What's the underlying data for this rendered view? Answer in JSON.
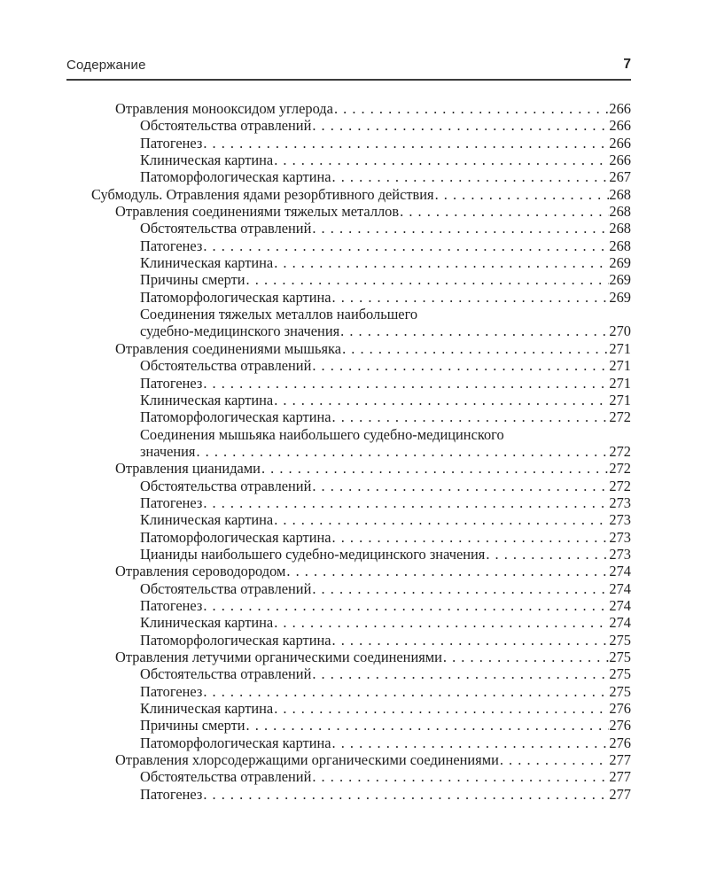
{
  "header": {
    "title": "Содержание",
    "page_number": "7"
  },
  "toc": {
    "entries": [
      {
        "indent": 1,
        "text": "Отравления монооксидом углерода",
        "page": "266"
      },
      {
        "indent": 2,
        "text": "Обстоятельства отравлений",
        "page": "266"
      },
      {
        "indent": 2,
        "text": "Патогенез",
        "page": "266"
      },
      {
        "indent": 2,
        "text": "Клиническая картина",
        "page": "266"
      },
      {
        "indent": 2,
        "text": "Патоморфологическая картина",
        "page": "267"
      },
      {
        "indent": 0,
        "text": "Субмодуль. Отравления ядами резорбтивного действия",
        "page": "268"
      },
      {
        "indent": 1,
        "text": "Отравления соединениями тяжелых металлов",
        "page": "268"
      },
      {
        "indent": 2,
        "text": "Обстоятельства отравлений",
        "page": "268"
      },
      {
        "indent": 2,
        "text": "Патогенез",
        "page": "268"
      },
      {
        "indent": 2,
        "text": "Клиническая картина",
        "page": "269"
      },
      {
        "indent": 2,
        "text": "Причины смерти",
        "page": "269"
      },
      {
        "indent": 2,
        "text": "Патоморфологическая картина",
        "page": "269"
      },
      {
        "indent": 2,
        "text": "Соединения тяжелых металлов наибольшего",
        "page": null
      },
      {
        "indent": 2,
        "text": "судебно-медицинского значения",
        "page": "270"
      },
      {
        "indent": 1,
        "text": "Отравления соединениями мышьяка",
        "page": "271"
      },
      {
        "indent": 2,
        "text": "Обстоятельства отравлений",
        "page": "271"
      },
      {
        "indent": 2,
        "text": "Патогенез",
        "page": "271"
      },
      {
        "indent": 2,
        "text": "Клиническая картина",
        "page": "271"
      },
      {
        "indent": 2,
        "text": "Патоморфологическая картина",
        "page": "272"
      },
      {
        "indent": 2,
        "text": "Соединения мышьяка наибольшего судебно-медицинского",
        "page": null
      },
      {
        "indent": 2,
        "text": "значения",
        "page": "272"
      },
      {
        "indent": 1,
        "text": "Отравления цианидами",
        "page": "272"
      },
      {
        "indent": 2,
        "text": "Обстоятельства отравлений",
        "page": "272"
      },
      {
        "indent": 2,
        "text": "Патогенез",
        "page": "273"
      },
      {
        "indent": 2,
        "text": "Клиническая картина",
        "page": "273"
      },
      {
        "indent": 2,
        "text": "Патоморфологическая картина",
        "page": "273"
      },
      {
        "indent": 2,
        "text": "Цианиды наибольшего судебно-медицинского значения",
        "page": "273"
      },
      {
        "indent": 1,
        "text": "Отравления сероводородом",
        "page": "274"
      },
      {
        "indent": 2,
        "text": "Обстоятельства отравлений",
        "page": "274"
      },
      {
        "indent": 2,
        "text": "Патогенез",
        "page": "274"
      },
      {
        "indent": 2,
        "text": "Клиническая картина",
        "page": "274"
      },
      {
        "indent": 2,
        "text": "Патоморфологическая картина",
        "page": "275"
      },
      {
        "indent": 1,
        "text": "Отравления летучими органическими соединениями",
        "page": "275"
      },
      {
        "indent": 2,
        "text": "Обстоятельства отравлений",
        "page": "275"
      },
      {
        "indent": 2,
        "text": "Патогенез",
        "page": "275"
      },
      {
        "indent": 2,
        "text": "Клиническая картина",
        "page": "276"
      },
      {
        "indent": 2,
        "text": "Причины смерти",
        "page": "276"
      },
      {
        "indent": 2,
        "text": "Патоморфологическая картина",
        "page": "276"
      },
      {
        "indent": 1,
        "text": "Отравления хлорсодержащими органическими соединениями",
        "page": "277"
      },
      {
        "indent": 2,
        "text": "Обстоятельства отравлений",
        "page": "277"
      },
      {
        "indent": 2,
        "text": "Патогенез",
        "page": "277"
      }
    ]
  },
  "colors": {
    "text": "#1e1e1e",
    "rule": "#3c3c3c",
    "background": "#ffffff"
  }
}
